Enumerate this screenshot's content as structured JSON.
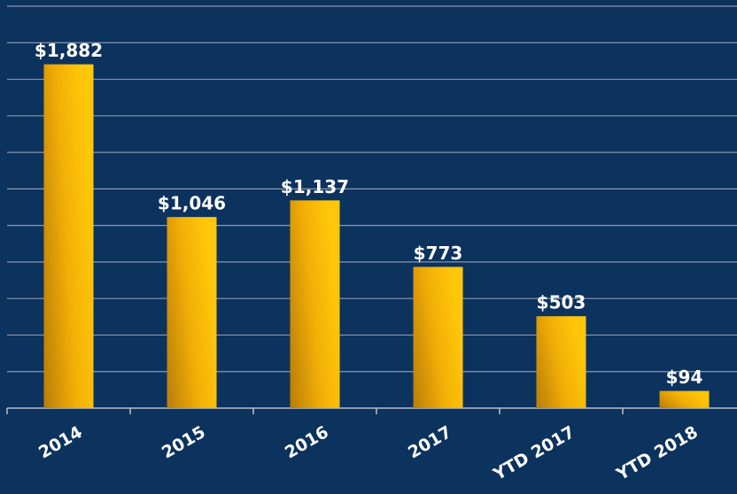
{
  "chart_data": {
    "type": "bar",
    "categories": [
      "2014",
      "2015",
      "2016",
      "2017",
      "YTD 2017",
      "YTD 2018"
    ],
    "values": [
      1882,
      1046,
      1137,
      773,
      503,
      94
    ],
    "value_labels": [
      "$1,882",
      "$1,046",
      "$1,137",
      "$773",
      "$503",
      "$94"
    ],
    "color": "#ffc000",
    "ylim": [
      0,
      2200
    ],
    "yticks": [
      0,
      200,
      400,
      600,
      800,
      1000,
      1200,
      1400,
      1600,
      1800,
      2000,
      2200
    ],
    "grid": true
  }
}
